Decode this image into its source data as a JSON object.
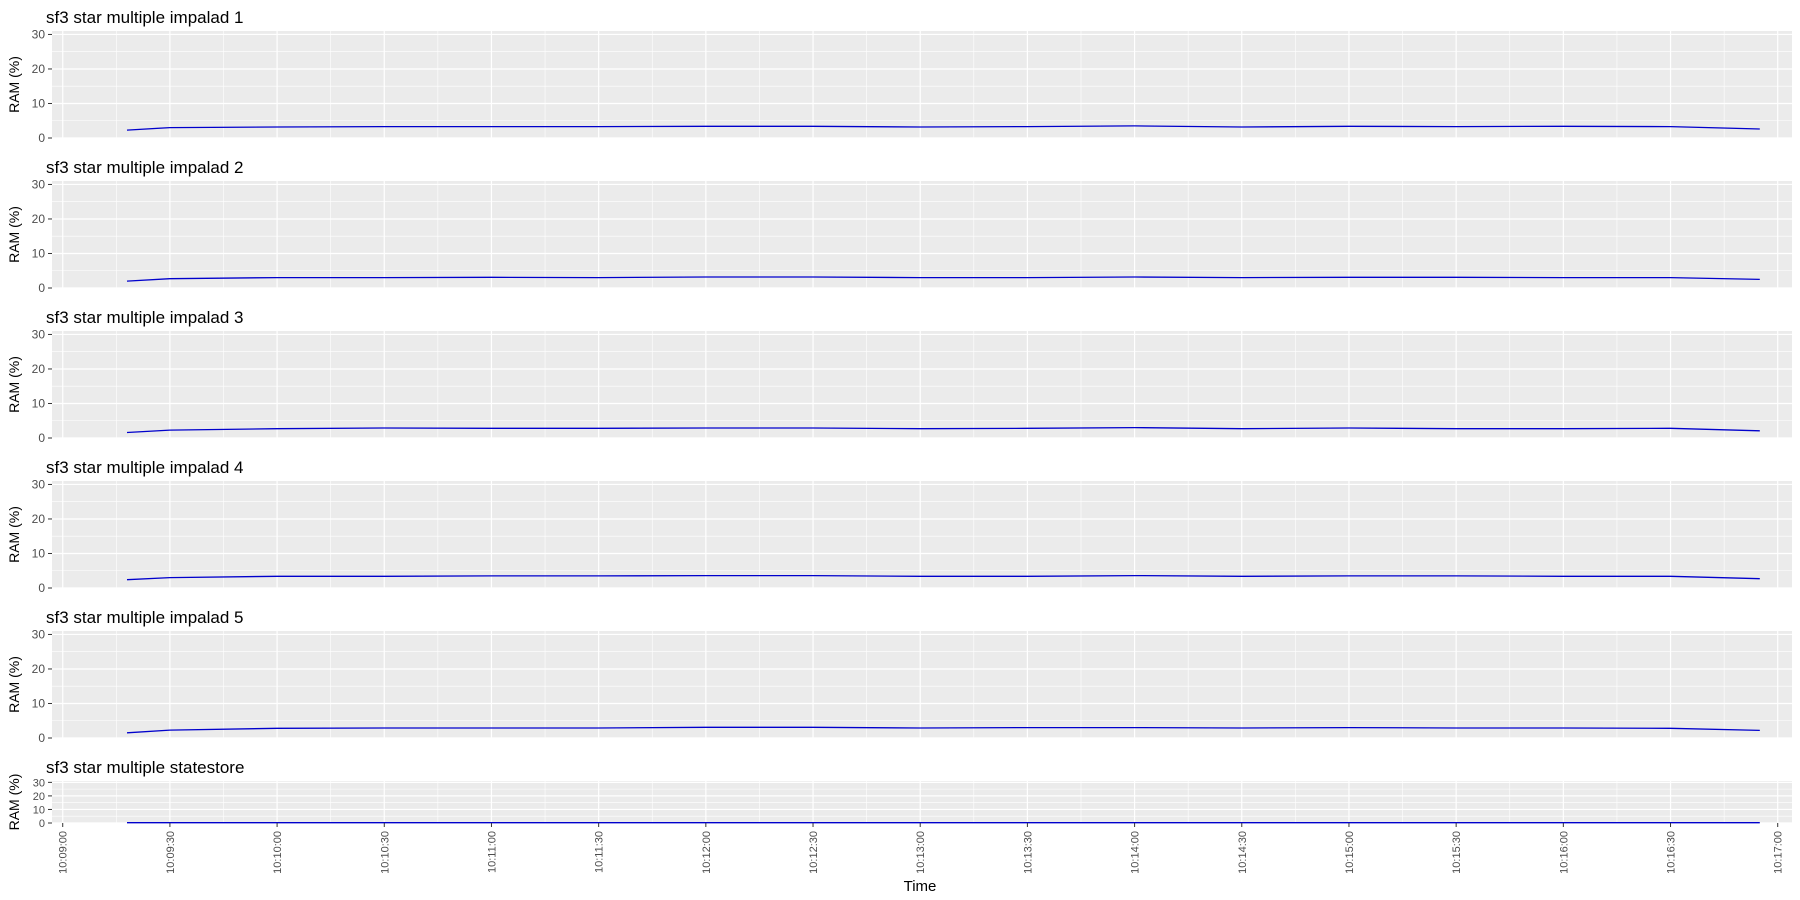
{
  "figure": {
    "xlabel": "Time",
    "x_ticks": [
      "10:09:00",
      "10:09:30",
      "10:10:00",
      "10:10:30",
      "10:11:00",
      "10:11:30",
      "10:12:00",
      "10:12:30",
      "10:13:00",
      "10:13:30",
      "10:14:00",
      "10:14:30",
      "10:15:00",
      "10:15:30",
      "10:16:00",
      "10:16:30",
      "10:17:00"
    ],
    "colors": {
      "panel_bg": "#ebebeb",
      "grid": "#ffffff",
      "line": "#0000cc",
      "text": "#000000",
      "tick_text": "#4d4d4d"
    }
  },
  "chart_data": [
    {
      "type": "line",
      "title": "sf3 star multiple impalad 1",
      "ylabel": "RAM (%)",
      "xlim": [
        "10:08:57",
        "10:17:04"
      ],
      "ylim": [
        0,
        31
      ],
      "y_ticks": [
        0,
        10,
        20,
        30
      ],
      "grid": true,
      "x": [
        "10:09:18",
        "10:09:30",
        "10:10:00",
        "10:10:30",
        "10:11:00",
        "10:11:30",
        "10:12:00",
        "10:12:30",
        "10:13:00",
        "10:13:30",
        "10:14:00",
        "10:14:30",
        "10:15:00",
        "10:15:30",
        "10:16:00",
        "10:16:30",
        "10:16:55"
      ],
      "values": [
        2.3,
        3.0,
        3.2,
        3.3,
        3.3,
        3.3,
        3.4,
        3.4,
        3.2,
        3.3,
        3.5,
        3.2,
        3.4,
        3.3,
        3.4,
        3.3,
        2.6
      ]
    },
    {
      "type": "line",
      "title": "sf3 star multiple impalad 2",
      "ylabel": "RAM (%)",
      "xlim": [
        "10:08:57",
        "10:17:04"
      ],
      "ylim": [
        0,
        31
      ],
      "y_ticks": [
        0,
        10,
        20,
        30
      ],
      "grid": true,
      "x": [
        "10:09:18",
        "10:09:30",
        "10:10:00",
        "10:10:30",
        "10:11:00",
        "10:11:30",
        "10:12:00",
        "10:12:30",
        "10:13:00",
        "10:13:30",
        "10:14:00",
        "10:14:30",
        "10:15:00",
        "10:15:30",
        "10:16:00",
        "10:16:30",
        "10:16:55"
      ],
      "values": [
        2.0,
        2.7,
        3.0,
        3.0,
        3.1,
        3.0,
        3.2,
        3.2,
        3.0,
        3.0,
        3.2,
        3.0,
        3.1,
        3.1,
        3.0,
        3.0,
        2.5
      ]
    },
    {
      "type": "line",
      "title": "sf3 star multiple impalad 3",
      "ylabel": "RAM (%)",
      "xlim": [
        "10:08:57",
        "10:17:04"
      ],
      "ylim": [
        0,
        31
      ],
      "y_ticks": [
        0,
        10,
        20,
        30
      ],
      "grid": true,
      "x": [
        "10:09:18",
        "10:09:30",
        "10:10:00",
        "10:10:30",
        "10:11:00",
        "10:11:30",
        "10:12:00",
        "10:12:30",
        "10:13:00",
        "10:13:30",
        "10:14:00",
        "10:14:30",
        "10:15:00",
        "10:15:30",
        "10:16:00",
        "10:16:30",
        "10:16:55"
      ],
      "values": [
        1.6,
        2.3,
        2.7,
        2.9,
        2.8,
        2.8,
        2.9,
        2.9,
        2.7,
        2.8,
        3.0,
        2.7,
        2.9,
        2.7,
        2.7,
        2.8,
        2.1
      ]
    },
    {
      "type": "line",
      "title": "sf3 star multiple impalad 4",
      "ylabel": "RAM (%)",
      "xlim": [
        "10:08:57",
        "10:17:04"
      ],
      "ylim": [
        0,
        31
      ],
      "y_ticks": [
        0,
        10,
        20,
        30
      ],
      "grid": true,
      "x": [
        "10:09:18",
        "10:09:30",
        "10:10:00",
        "10:10:30",
        "10:11:00",
        "10:11:30",
        "10:12:00",
        "10:12:30",
        "10:13:00",
        "10:13:30",
        "10:14:00",
        "10:14:30",
        "10:15:00",
        "10:15:30",
        "10:16:00",
        "10:16:30",
        "10:16:55"
      ],
      "values": [
        2.4,
        3.0,
        3.4,
        3.4,
        3.5,
        3.5,
        3.6,
        3.6,
        3.4,
        3.4,
        3.6,
        3.4,
        3.5,
        3.5,
        3.4,
        3.4,
        2.7
      ]
    },
    {
      "type": "line",
      "title": "sf3 star multiple impalad 5",
      "ylabel": "RAM (%)",
      "xlim": [
        "10:08:57",
        "10:17:04"
      ],
      "ylim": [
        0,
        31
      ],
      "y_ticks": [
        0,
        10,
        20,
        30
      ],
      "grid": true,
      "x": [
        "10:09:18",
        "10:09:30",
        "10:10:00",
        "10:10:30",
        "10:11:00",
        "10:11:30",
        "10:12:00",
        "10:12:30",
        "10:13:00",
        "10:13:30",
        "10:14:00",
        "10:14:30",
        "10:15:00",
        "10:15:30",
        "10:16:00",
        "10:16:30",
        "10:16:55"
      ],
      "values": [
        1.5,
        2.3,
        2.8,
        2.9,
        2.9,
        2.9,
        3.1,
        3.1,
        2.9,
        3.0,
        3.0,
        2.9,
        3.0,
        2.9,
        2.9,
        2.8,
        2.2
      ]
    },
    {
      "type": "line",
      "title": "sf3 star multiple statestore",
      "ylabel": "RAM (%)",
      "xlim": [
        "10:08:57",
        "10:17:04"
      ],
      "ylim": [
        0,
        31
      ],
      "y_ticks": [
        0,
        10,
        20,
        30
      ],
      "grid": true,
      "x": [
        "10:09:18",
        "10:10:00",
        "10:11:00",
        "10:12:00",
        "10:13:00",
        "10:14:00",
        "10:15:00",
        "10:16:00",
        "10:16:55"
      ],
      "values": [
        0.2,
        0.2,
        0.2,
        0.2,
        0.2,
        0.2,
        0.2,
        0.2,
        0.2
      ]
    }
  ]
}
